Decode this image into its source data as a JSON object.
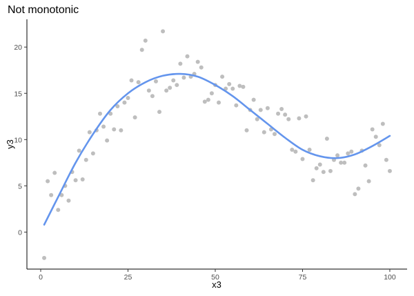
{
  "chart_data": {
    "type": "scatter",
    "title": "Not monotonic",
    "xlabel": "x3",
    "ylabel": "y3",
    "xlim": [
      -3.95,
      104.95
    ],
    "ylim": [
      -4.0,
      23.0
    ],
    "xticks": [
      0,
      25,
      50,
      75,
      100
    ],
    "yticks": [
      0,
      5,
      10,
      15,
      20
    ],
    "grid": false,
    "legend": "none",
    "point_color": "#bebebe",
    "line_color": "#6495ed",
    "points": [
      [
        1,
        -2.8
      ],
      [
        2,
        5.5
      ],
      [
        3,
        4.0
      ],
      [
        4,
        6.4
      ],
      [
        5,
        2.4
      ],
      [
        6,
        4.0
      ],
      [
        7,
        5.0
      ],
      [
        8,
        3.4
      ],
      [
        9,
        6.5
      ],
      [
        10,
        5.6
      ],
      [
        11,
        8.8
      ],
      [
        12,
        5.7
      ],
      [
        13,
        7.8
      ],
      [
        14,
        10.8
      ],
      [
        15,
        8.5
      ],
      [
        16,
        11.0
      ],
      [
        17,
        12.8
      ],
      [
        18,
        11.4
      ],
      [
        19,
        9.9
      ],
      [
        20,
        12.8
      ],
      [
        21,
        11.1
      ],
      [
        22,
        13.6
      ],
      [
        23,
        11.0
      ],
      [
        24,
        14.0
      ],
      [
        25,
        14.5
      ],
      [
        26,
        16.4
      ],
      [
        27,
        12.4
      ],
      [
        28,
        16.2
      ],
      [
        29,
        19.7
      ],
      [
        30,
        20.7
      ],
      [
        31,
        15.3
      ],
      [
        32,
        14.7
      ],
      [
        33,
        16.3
      ],
      [
        34,
        13.0
      ],
      [
        35,
        21.7
      ],
      [
        36,
        15.3
      ],
      [
        37,
        15.6
      ],
      [
        38,
        16.4
      ],
      [
        39,
        15.9
      ],
      [
        40,
        18.2
      ],
      [
        41,
        16.7
      ],
      [
        42,
        19.0
      ],
      [
        43,
        16.8
      ],
      [
        44,
        17.1
      ],
      [
        45,
        18.4
      ],
      [
        46,
        17.8
      ],
      [
        47,
        14.1
      ],
      [
        48,
        14.3
      ],
      [
        49,
        15.0
      ],
      [
        50,
        15.9
      ],
      [
        51,
        14.0
      ],
      [
        52,
        16.8
      ],
      [
        53,
        15.5
      ],
      [
        54,
        16.0
      ],
      [
        55,
        15.5
      ],
      [
        56,
        13.7
      ],
      [
        57,
        15.8
      ],
      [
        58,
        15.7
      ],
      [
        59,
        11.0
      ],
      [
        60,
        13.2
      ],
      [
        61,
        14.3
      ],
      [
        62,
        12.2
      ],
      [
        63,
        13.2
      ],
      [
        64,
        10.8
      ],
      [
        65,
        13.4
      ],
      [
        66,
        11.1
      ],
      [
        67,
        10.6
      ],
      [
        68,
        12.8
      ],
      [
        69,
        13.3
      ],
      [
        70,
        12.7
      ],
      [
        71,
        12.2
      ],
      [
        72,
        8.9
      ],
      [
        73,
        8.7
      ],
      [
        74,
        12.3
      ],
      [
        75,
        7.9
      ],
      [
        76,
        12.5
      ],
      [
        77,
        8.9
      ],
      [
        78,
        5.6
      ],
      [
        79,
        6.9
      ],
      [
        80,
        7.3
      ],
      [
        81,
        6.5
      ],
      [
        82,
        10.1
      ],
      [
        83,
        6.6
      ],
      [
        84,
        7.8
      ],
      [
        85,
        8.3
      ],
      [
        86,
        7.5
      ],
      [
        87,
        7.5
      ],
      [
        88,
        8.5
      ],
      [
        89,
        8.7
      ],
      [
        90,
        4.1
      ],
      [
        91,
        4.7
      ],
      [
        92,
        8.8
      ],
      [
        93,
        7.2
      ],
      [
        94,
        5.5
      ],
      [
        95,
        11.1
      ],
      [
        96,
        10.3
      ],
      [
        97,
        9.4
      ],
      [
        98,
        11.7
      ],
      [
        99,
        7.8
      ],
      [
        100,
        6.6
      ]
    ],
    "smooth_line": {
      "x": [
        1,
        5,
        10,
        15,
        20,
        25,
        30,
        35,
        40,
        45,
        50,
        55,
        60,
        65,
        70,
        75,
        80,
        85,
        90,
        95,
        100
      ],
      "y": [
        0.8,
        3.8,
        7.5,
        10.6,
        13.2,
        15.0,
        16.2,
        16.9,
        17.1,
        16.8,
        15.9,
        14.7,
        13.2,
        11.7,
        10.2,
        8.9,
        8.2,
        8.0,
        8.4,
        9.3,
        10.4
      ]
    }
  }
}
